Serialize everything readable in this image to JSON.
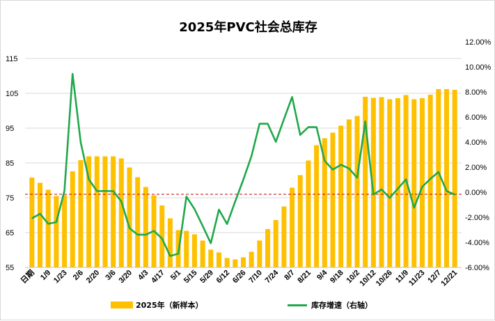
{
  "chart_data": {
    "type": "bar+line",
    "title": "2025年PVC社会总库存",
    "categories": [
      "日期",
      "",
      "1/9",
      "",
      "1/23",
      "",
      "2/6",
      "",
      "2/20",
      "",
      "3/6",
      "",
      "3/20",
      "",
      "4/3",
      "",
      "4/17",
      "",
      "5/1",
      "",
      "5/15",
      "",
      "5/29",
      "",
      "6/12",
      "",
      "6/26",
      "",
      "7/10",
      "",
      "7/24",
      "",
      "8/7",
      "",
      "8/21",
      "",
      "9/4",
      "",
      "9/18",
      "",
      "10/2",
      "",
      "10/12",
      "",
      "10/26",
      "",
      "11/9",
      "",
      "11/23",
      "",
      "12/7",
      "",
      "12/21"
    ],
    "x_tick_labels": [
      "日期",
      "1/9",
      "1/23",
      "2/6",
      "2/20",
      "3/6",
      "3/20",
      "4/3",
      "4/17",
      "5/1",
      "5/15",
      "5/29",
      "6/12",
      "6/26",
      "7/10",
      "7/24",
      "8/7",
      "8/21",
      "9/4",
      "9/18",
      "10/2",
      "10/12",
      "10/26",
      "11/9",
      "11/23",
      "12/7",
      "12/21"
    ],
    "series": [
      {
        "name": "2025年（新样本）",
        "type": "bar",
        "axis": "left",
        "color": "#FFC000",
        "values": [
          80.8,
          79.3,
          77.3,
          75.5,
          75.7,
          82.6,
          85.8,
          86.9,
          86.9,
          86.9,
          86.9,
          86.3,
          83.7,
          80.9,
          78.1,
          75.7,
          72.8,
          69.1,
          65.7,
          65.5,
          64.5,
          62.7,
          60.1,
          59.3,
          57.7,
          57.3,
          57.9,
          59.5,
          62.7,
          66.0,
          68.6,
          72.5,
          77.9,
          81.5,
          85.7,
          90.1,
          92.1,
          93.7,
          95.7,
          97.5,
          98.5,
          104.0,
          103.7,
          103.9,
          103.3,
          103.6,
          104.5,
          103.3,
          103.6,
          104.6,
          106.2,
          106.2,
          106.0
        ]
      },
      {
        "name": "库存增速（右轴）",
        "type": "line",
        "axis": "right",
        "color": "#1FA84A",
        "values": [
          -2.09,
          -1.72,
          -2.52,
          -2.39,
          0.1,
          9.44,
          3.98,
          1.02,
          0.09,
          0.09,
          0.09,
          -0.74,
          -2.87,
          -3.39,
          -3.39,
          -3.09,
          -3.7,
          -5.09,
          -4.91,
          -0.35,
          -1.35,
          -2.69,
          -4.07,
          -1.39,
          -2.54,
          -0.74,
          1.0,
          2.87,
          5.46,
          5.46,
          4.02,
          5.83,
          7.59,
          4.57,
          5.19,
          5.19,
          2.5,
          1.8,
          2.19,
          1.89,
          1.15,
          5.65,
          -0.19,
          0.22,
          -0.46,
          0.28,
          1.02,
          -1.24,
          0.43,
          1.06,
          1.61,
          0.09,
          -0.19
        ]
      }
    ],
    "reference_line": {
      "axis": "left",
      "value": 76,
      "color": "#C00000",
      "style": "dashed"
    },
    "ylim_left": [
      55,
      115
    ],
    "yticks_left": [
      "55",
      "65",
      "75",
      "85",
      "95",
      "105",
      "115"
    ],
    "ylim_right": [
      -6,
      12
    ],
    "yticks_right": [
      "-6.00%",
      "-4.00%",
      "-2.00%",
      "0.00%",
      "2.00%",
      "4.00%",
      "6.00%",
      "8.00%",
      "10.00%",
      "12.00%"
    ],
    "grid": true,
    "legend_position": "bottom",
    "legend": [
      "2025年（新样本）",
      "库存增速（右轴）"
    ]
  }
}
